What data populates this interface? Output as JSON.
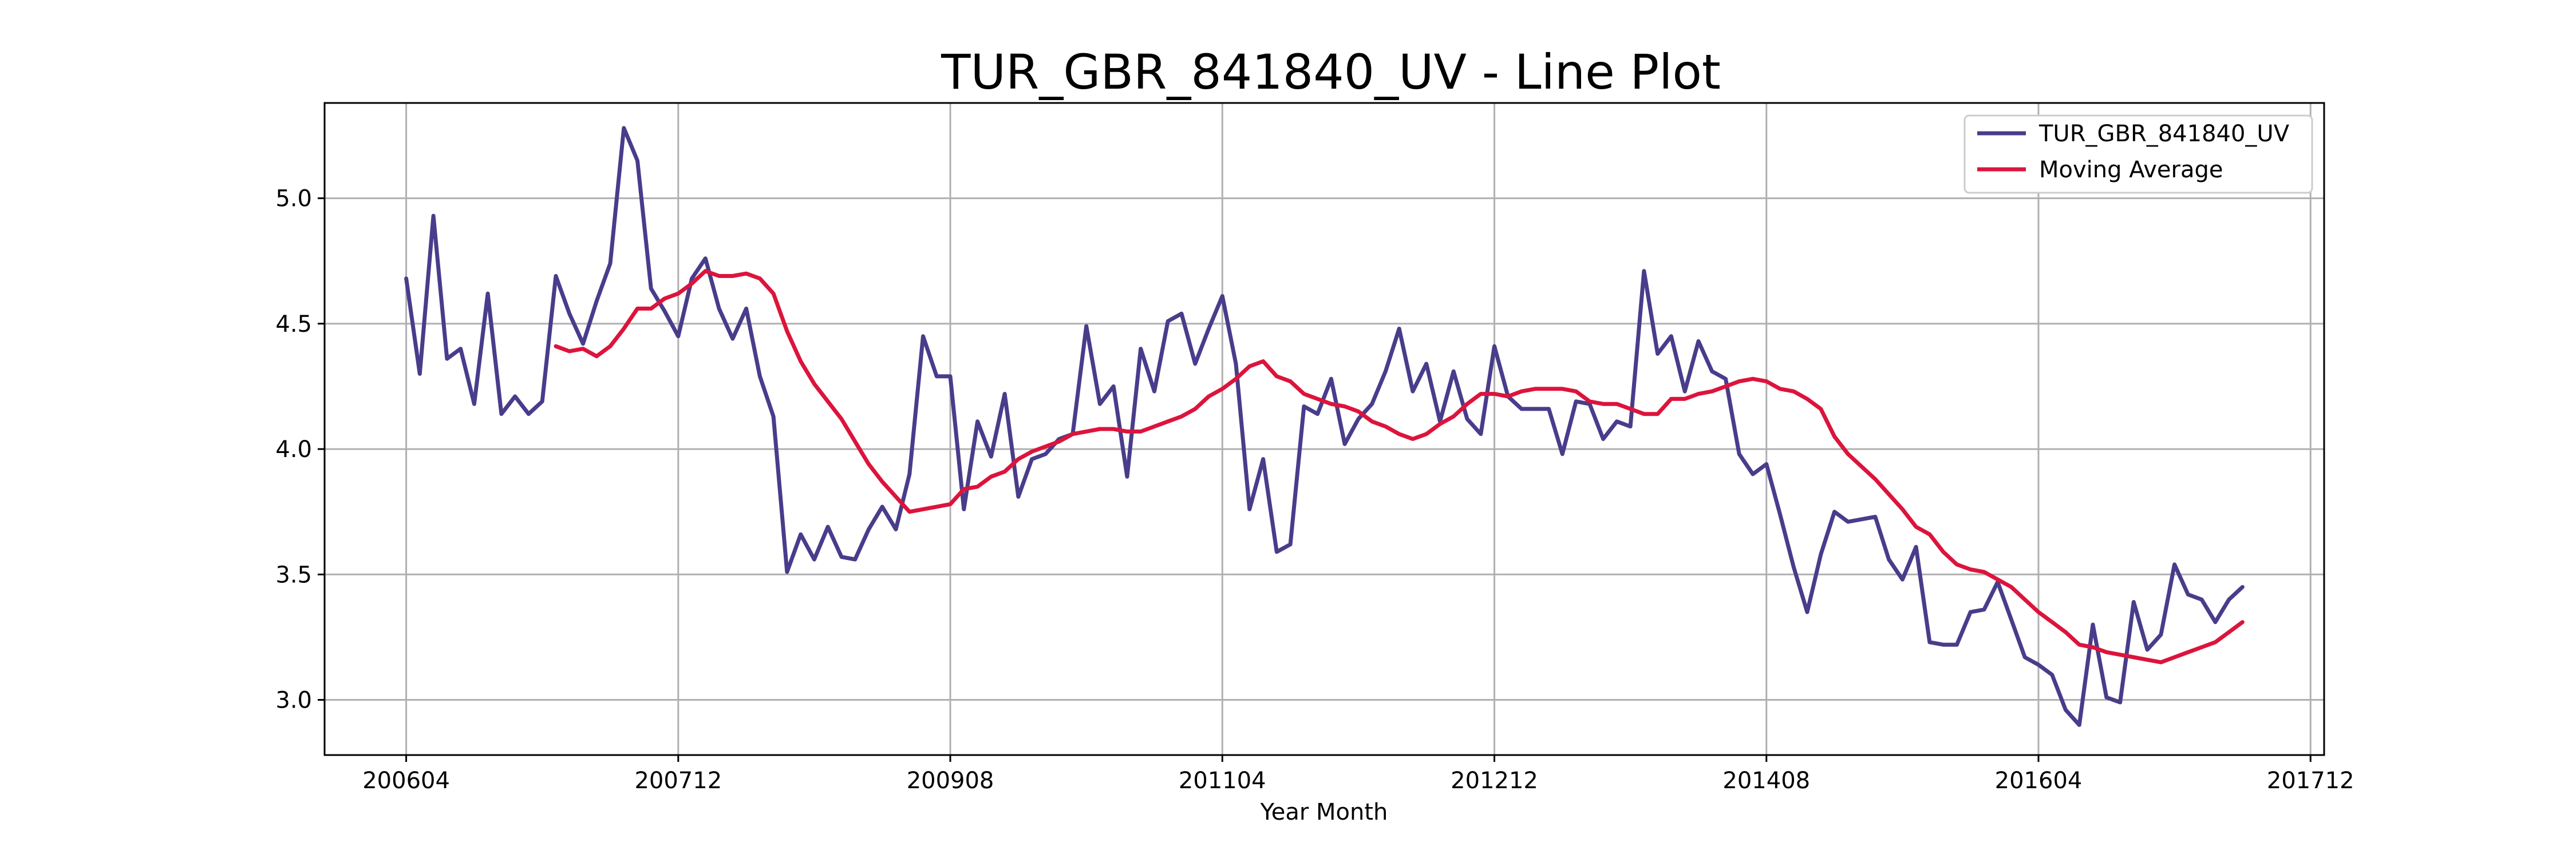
{
  "chart_data": {
    "type": "line",
    "title": "TUR_GBR_841840_UV - Line Plot",
    "xlabel": "Year Month",
    "ylabel": "",
    "x_tick_labels": [
      "200604",
      "200712",
      "200908",
      "201104",
      "201212",
      "201408",
      "201604",
      "201712"
    ],
    "y_tick_labels": [
      "3.0",
      "3.5",
      "4.0",
      "4.5",
      "5.0"
    ],
    "y_ticks": [
      3.0,
      3.5,
      4.0,
      4.5,
      5.0
    ],
    "ylim": [
      2.78,
      5.38
    ],
    "xlim": [
      "200510",
      "201801"
    ],
    "grid": true,
    "legend_position": "top-right",
    "start_month": "200604",
    "series": [
      {
        "name": "TUR_GBR_841840_UV",
        "color": "#483D8B",
        "values": [
          4.68,
          4.3,
          4.93,
          4.36,
          4.4,
          4.18,
          4.62,
          4.14,
          4.21,
          4.14,
          4.19,
          4.69,
          4.54,
          4.42,
          4.59,
          4.74,
          5.28,
          5.15,
          4.64,
          4.55,
          4.45,
          4.68,
          4.76,
          4.56,
          4.44,
          4.56,
          4.29,
          4.13,
          3.51,
          3.66,
          3.56,
          3.69,
          3.57,
          3.56,
          3.68,
          3.77,
          3.68,
          3.9,
          4.45,
          4.29,
          4.29,
          3.76,
          4.11,
          3.97,
          4.22,
          3.81,
          3.96,
          3.98,
          4.04,
          4.06,
          4.49,
          4.18,
          4.25,
          3.89,
          4.4,
          4.23,
          4.51,
          4.54,
          4.34,
          4.48,
          4.61,
          4.34,
          3.76,
          3.96,
          3.59,
          3.62,
          4.17,
          4.14,
          4.28,
          4.02,
          4.12,
          4.18,
          4.31,
          4.48,
          4.23,
          4.34,
          4.11,
          4.31,
          4.12,
          4.06,
          4.41,
          4.21,
          4.16,
          4.16,
          4.16,
          3.98,
          4.19,
          4.18,
          4.04,
          4.11,
          4.09,
          4.71,
          4.38,
          4.45,
          4.23,
          4.43,
          4.31,
          4.28,
          3.98,
          3.9,
          3.94,
          3.74,
          3.53,
          3.35,
          3.58,
          3.75,
          3.71,
          3.72,
          3.73,
          3.56,
          3.48,
          3.61,
          3.23,
          3.22,
          3.22,
          3.35,
          3.36,
          3.47,
          3.32,
          3.17,
          3.14,
          3.1,
          2.96,
          2.9,
          3.3,
          3.01,
          2.99,
          3.39,
          3.2,
          3.26,
          3.54,
          3.42,
          3.4,
          3.31,
          3.4,
          3.45
        ]
      },
      {
        "name": "Moving Average",
        "color": "#DC143C",
        "values": [
          null,
          null,
          null,
          null,
          null,
          null,
          null,
          null,
          null,
          null,
          null,
          4.41,
          4.39,
          4.4,
          4.37,
          4.41,
          4.48,
          4.56,
          4.56,
          4.6,
          4.62,
          4.66,
          4.71,
          4.69,
          4.69,
          4.7,
          4.68,
          4.62,
          4.47,
          4.35,
          4.26,
          4.19,
          4.12,
          4.03,
          3.94,
          3.87,
          3.81,
          3.75,
          3.76,
          3.77,
          3.78,
          3.84,
          3.85,
          3.89,
          3.91,
          3.96,
          3.99,
          4.01,
          4.03,
          4.06,
          4.07,
          4.08,
          4.08,
          4.07,
          4.07,
          4.09,
          4.11,
          4.13,
          4.16,
          4.21,
          4.24,
          4.28,
          4.33,
          4.35,
          4.29,
          4.27,
          4.22,
          4.2,
          4.18,
          4.17,
          4.15,
          4.11,
          4.09,
          4.06,
          4.04,
          4.06,
          4.1,
          4.13,
          4.18,
          4.22,
          4.22,
          4.21,
          4.23,
          4.24,
          4.24,
          4.24,
          4.23,
          4.19,
          4.18,
          4.18,
          4.16,
          4.14,
          4.14,
          4.2,
          4.2,
          4.22,
          4.23,
          4.25,
          4.27,
          4.28,
          4.27,
          4.24,
          4.23,
          4.2,
          4.16,
          4.05,
          3.98,
          3.93,
          3.88,
          3.82,
          3.76,
          3.69,
          3.66,
          3.59,
          3.54,
          3.52,
          3.51,
          3.48,
          3.45,
          3.4,
          3.35,
          3.31,
          3.27,
          3.22,
          3.21,
          3.19,
          3.18,
          3.17,
          3.16,
          3.15,
          3.17,
          3.19,
          3.21,
          3.23,
          3.27,
          3.31
        ]
      }
    ]
  }
}
